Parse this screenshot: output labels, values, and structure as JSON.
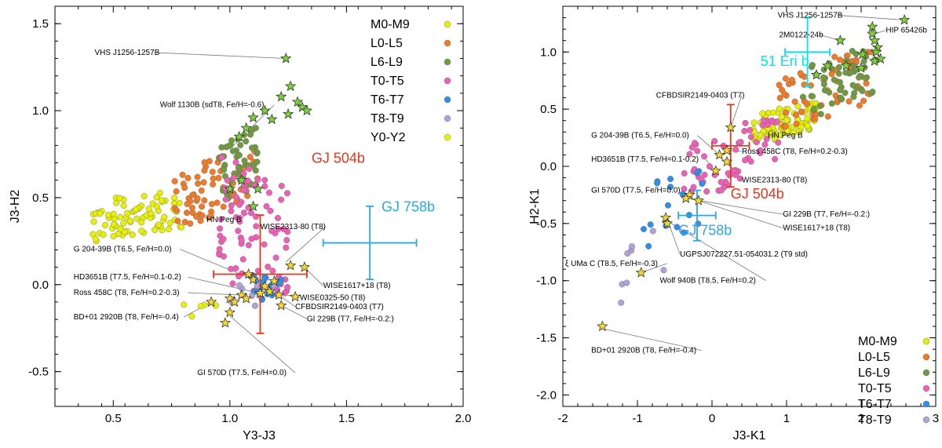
{
  "chart_data": [
    {
      "type": "scatter",
      "id": "left",
      "xlabel": "Y3-J3",
      "ylabel": "J3-H2",
      "xlim": [
        0.25,
        2.0
      ],
      "ylim": [
        -0.7,
        1.6
      ],
      "xticks": [
        0.5,
        1.0,
        1.5,
        2.0
      ],
      "xtick_labels": [
        "0.5",
        "1.0",
        "1.5",
        "2.0"
      ],
      "yticks": [
        -0.5,
        0.0,
        0.5,
        1.0,
        1.5
      ],
      "ytick_labels": [
        "-0.5",
        "0.0",
        "0.5",
        "1.0",
        "1.5"
      ],
      "legend": [
        {
          "label": "M0-M9",
          "color": "#e6f000"
        },
        {
          "label": "L0-L5",
          "color": "#f07a28"
        },
        {
          "label": "L6-L9",
          "color": "#6f9a40"
        },
        {
          "label": "T0-T5",
          "color": "#ee5fb8"
        },
        {
          "label": "T6-T7",
          "color": "#2e8ee8"
        },
        {
          "label": "T8-T9",
          "color": "#b0a2d8"
        },
        {
          "label": "Y0-Y2",
          "color": "#e6f000"
        }
      ],
      "clusters": [
        {
          "group": "M0-M9",
          "color": "#e6f000",
          "seed": 11,
          "n": 80,
          "x": [
            0.4,
            0.8
          ],
          "y": [
            0.25,
            0.55
          ],
          "slope": 0.45
        },
        {
          "group": "L0-L5",
          "color": "#f07a28",
          "seed": 21,
          "n": 70,
          "x": [
            0.75,
            1.12
          ],
          "y": [
            0.35,
            0.78
          ],
          "slope": 0.9
        },
        {
          "group": "L6-L9",
          "color": "#6f9a40",
          "seed": 31,
          "n": 55,
          "x": [
            0.95,
            1.12
          ],
          "y": [
            0.45,
            0.9
          ],
          "slope": 1.5
        },
        {
          "group": "T0-T5",
          "color": "#ee5fb8",
          "seed": 41,
          "n": 85,
          "x": [
            0.95,
            1.25
          ],
          "y": [
            -0.15,
            0.75
          ],
          "slope": -1.2
        },
        {
          "group": "T6-T7",
          "color": "#2e8ee8",
          "seed": 51,
          "n": 16,
          "x": [
            1.05,
            1.22
          ],
          "y": [
            -0.12,
            0.08
          ],
          "slope": 0
        },
        {
          "group": "T8-T9",
          "color": "#b0a2d8",
          "seed": 61,
          "n": 8,
          "x": [
            1.0,
            1.2
          ],
          "y": [
            -0.15,
            0.02
          ],
          "slope": 0
        },
        {
          "group": "Y0-Y2",
          "color": "#e6f000",
          "seed": 71,
          "n": 5,
          "x": [
            0.75,
            0.95
          ],
          "y": [
            -0.25,
            -0.05
          ],
          "slope": 0
        }
      ],
      "stars_green": [
        [
          1.24,
          1.3
        ],
        [
          1.26,
          1.14
        ],
        [
          1.22,
          1.08
        ],
        [
          1.29,
          1.05
        ],
        [
          1.31,
          1.02
        ],
        [
          1.33,
          1.0
        ],
        [
          1.15,
          1.0
        ],
        [
          1.25,
          0.98
        ],
        [
          1.1,
          0.96
        ],
        [
          1.18,
          0.95
        ],
        [
          1.07,
          0.9
        ],
        [
          1.04,
          0.85
        ],
        [
          1.05,
          0.6
        ],
        [
          1.12,
          0.55
        ],
        [
          1.0,
          0.55
        ],
        [
          1.1,
          0.45
        ]
      ],
      "stars_yellow": [
        [
          1.26,
          0.11
        ],
        [
          1.32,
          0.1
        ],
        [
          1.19,
          0.02
        ],
        [
          1.15,
          -0.01
        ],
        [
          1.13,
          -0.05
        ],
        [
          1.1,
          0.03
        ],
        [
          1.08,
          0.06
        ],
        [
          1.17,
          -0.04
        ],
        [
          1.21,
          -0.06
        ],
        [
          1.28,
          -0.07
        ],
        [
          1.22,
          -0.12
        ],
        [
          1.05,
          -0.06
        ],
        [
          1.07,
          -0.08
        ],
        [
          1.0,
          -0.08
        ],
        [
          1.02,
          -0.1
        ],
        [
          0.92,
          -0.1
        ],
        [
          1.0,
          -0.16
        ],
        [
          0.98,
          -0.22
        ]
      ],
      "star_colors": {
        "green": "#7dd23c",
        "yellow": "#f5d733"
      },
      "errorbars": [
        {
          "name": "GJ 504b",
          "label": "GJ 504b",
          "x": 1.13,
          "xerr": 0.2,
          "y": 0.06,
          "yerr": 0.34,
          "color": "#e8351e",
          "label_pos": [
            1.35,
            0.7
          ]
        },
        {
          "name": "GJ 758b",
          "label": "GJ 758b",
          "x": 1.6,
          "xerr": 0.2,
          "y": 0.24,
          "yerr": 0.21,
          "color": "#2ea6e4",
          "label_pos": [
            1.65,
            0.42
          ]
        }
      ],
      "annotations": [
        {
          "text": "VHS J1256-1257B",
          "x": 0.42,
          "y": 1.32,
          "ax": 1.24,
          "ay": 1.3
        },
        {
          "text": "Wolf 1130B (sdT8, Fe/H=-0.6)",
          "x": 0.7,
          "y": 1.02,
          "ax": 1.0,
          "ay": 0.78
        },
        {
          "text": "HN Peg B",
          "x": 0.9,
          "y": 0.36,
          "ax": 1.1,
          "ay": 0.43
        },
        {
          "text": "WISE2313-80 (T8)",
          "x": 1.13,
          "y": 0.32,
          "ax": 1.24,
          "ay": 0.13
        },
        {
          "text": "G 204-39B (T6.5, Fe/H=0.0)",
          "x": 0.33,
          "y": 0.19,
          "ax": 1.1,
          "ay": 0.03
        },
        {
          "text": "WISE1617+18 (T8)",
          "x": 1.4,
          "y": -0.02,
          "ax": 1.32,
          "ay": 0.1
        },
        {
          "text": "HD3651B (T7.5, Fe/H=0.1-0.2)",
          "x": 0.33,
          "y": 0.03,
          "ax": 1.13,
          "ay": -0.05
        },
        {
          "text": "WISE0325-50 (T8)",
          "x": 1.3,
          "y": -0.09,
          "ax": 1.18,
          "ay": -0.04
        },
        {
          "text": "Ross 458C (T8, Fe/H=0.2-0.3)",
          "x": 0.33,
          "y": -0.06,
          "ax": 1.05,
          "ay": -0.06
        },
        {
          "text": "CFBDSIR2149-0403 (T7)",
          "x": 1.28,
          "y": -0.14,
          "ax": 1.21,
          "ay": -0.06
        },
        {
          "text": "GI 229B (T7, Fe/H=-0.2:)",
          "x": 1.33,
          "y": -0.21,
          "ax": 1.22,
          "ay": -0.12
        },
        {
          "text": "BD+01 2920B (T8, Fe/H=-0.4)",
          "x": 0.33,
          "y": -0.2,
          "ax": 0.92,
          "ay": -0.1
        },
        {
          "text": "GI 570D (T7.5, Fe/H=0.0)",
          "x": 0.86,
          "y": -0.52,
          "ax": 1.0,
          "ay": -0.18
        }
      ]
    },
    {
      "type": "scatter",
      "id": "right",
      "xlabel": "J3-K1",
      "ylabel": "H2-K1",
      "xlim": [
        -2.0,
        3.0
      ],
      "ylim": [
        -2.1,
        1.4
      ],
      "xticks": [
        -2,
        -1,
        0,
        1,
        2,
        3
      ],
      "xtick_labels": [
        "-2",
        "-1",
        "0",
        "1",
        "2",
        "3"
      ],
      "yticks": [
        -2.0,
        -1.5,
        -1.0,
        -0.5,
        0.0,
        0.5,
        1.0
      ],
      "ytick_labels": [
        "-2.0",
        "-1.5",
        "-1.0",
        "-0.5",
        "0.0",
        "0.5",
        "1.0"
      ],
      "legend": [
        {
          "label": "M0-M9",
          "color": "#e6f000"
        },
        {
          "label": "L0-L5",
          "color": "#f07a28"
        },
        {
          "label": "L6-L9",
          "color": "#6f9a40"
        },
        {
          "label": "T0-T5",
          "color": "#ee5fb8"
        },
        {
          "label": "T6-T7",
          "color": "#2e8ee8"
        },
        {
          "label": "T8-T9",
          "color": "#b0a2d8"
        }
      ],
      "clusters": [
        {
          "group": "M0-M9",
          "color": "#e6f000",
          "seed": 12,
          "n": 90,
          "x": [
            0.55,
            1.4
          ],
          "y": [
            0.22,
            0.55
          ],
          "slope": 0.35
        },
        {
          "group": "L0-L5",
          "color": "#f07a28",
          "seed": 22,
          "n": 60,
          "x": [
            0.9,
            2.15
          ],
          "y": [
            0.35,
            1.0
          ],
          "slope": 0.5
        },
        {
          "group": "L6-L9",
          "color": "#6f9a40",
          "seed": 32,
          "n": 55,
          "x": [
            1.2,
            2.2
          ],
          "y": [
            0.45,
            1.05
          ],
          "slope": 0.55
        },
        {
          "group": "T0-T5",
          "color": "#ee5fb8",
          "seed": 42,
          "n": 60,
          "x": [
            -0.4,
            0.9
          ],
          "y": [
            -0.25,
            0.4
          ],
          "slope": 0.5
        },
        {
          "group": "T6-T7",
          "color": "#2e8ee8",
          "seed": 52,
          "n": 18,
          "x": [
            -0.95,
            -0.1
          ],
          "y": [
            -0.8,
            0.05
          ],
          "slope": 0.9
        },
        {
          "group": "T8-T9",
          "color": "#b0a2d8",
          "seed": 62,
          "n": 8,
          "x": [
            -1.25,
            -0.6
          ],
          "y": [
            -1.2,
            -0.55
          ],
          "slope": 0.9
        }
      ],
      "stars_green": [
        [
          2.58,
          1.28
        ],
        [
          2.15,
          1.22
        ],
        [
          2.15,
          1.16
        ],
        [
          2.18,
          1.1
        ],
        [
          2.22,
          1.04
        ],
        [
          2.2,
          1.0
        ],
        [
          2.02,
          0.98
        ],
        [
          2.26,
          0.94
        ],
        [
          2.18,
          0.92
        ],
        [
          1.72,
          1.1
        ],
        [
          1.55,
          0.88
        ],
        [
          1.4,
          0.8
        ],
        [
          1.8,
          0.88
        ],
        [
          2.0,
          0.86
        ]
      ],
      "stars_yellow": [
        [
          0.25,
          0.34
        ],
        [
          0.2,
          0.14
        ],
        [
          0.1,
          0.1
        ],
        [
          0.2,
          0.04
        ],
        [
          0.05,
          -0.04
        ],
        [
          -0.3,
          -0.25
        ],
        [
          -0.35,
          -0.28
        ],
        [
          -0.18,
          -0.3
        ],
        [
          -0.62,
          -0.45
        ],
        [
          -0.6,
          -0.5
        ],
        [
          -0.95,
          -0.93
        ],
        [
          -1.47,
          -1.4
        ]
      ],
      "star_colors": {
        "green": "#7dd23c",
        "yellow": "#f5d733"
      },
      "errorbars": [
        {
          "name": "GJ 504b",
          "label": "GJ 504b",
          "x": 0.25,
          "xerr": 0.25,
          "y": 0.18,
          "yerr": 0.36,
          "color": "#e8351e",
          "label_pos": [
            0.25,
            -0.28
          ]
        },
        {
          "name": "GJ 758b",
          "label": "GJ 758b",
          "x": -0.2,
          "xerr": 0.25,
          "y": -0.43,
          "yerr": 0.22,
          "color": "#2ea6e4",
          "label_pos": [
            -0.45,
            -0.6
          ]
        },
        {
          "name": "51 Eri b",
          "label": "51 Eri b",
          "x": 1.28,
          "xerr": 0.3,
          "y": 1.0,
          "yerr": 0.3,
          "color": "#00e6ee",
          "label_pos": [
            0.65,
            0.88
          ]
        }
      ],
      "annotations": [
        {
          "text": "VHS J1256-1257B",
          "x": 0.88,
          "y": 1.3,
          "ax": 2.58,
          "ay": 1.28
        },
        {
          "text": "HIP 65426b",
          "x": 2.33,
          "y": 1.17,
          "ax": 2.15,
          "ay": 1.15
        },
        {
          "text": "2M0122-24b",
          "x": 0.9,
          "y": 1.13,
          "ax": 1.72,
          "ay": 1.1
        },
        {
          "text": "CFBDSIR2149-0403 (T7)",
          "x": -0.75,
          "y": 0.6,
          "ax": 0.25,
          "ay": 0.34
        },
        {
          "text": "HN Peg B",
          "x": 0.75,
          "y": 0.25,
          "ax": 0.6,
          "ay": 0.3
        },
        {
          "text": "G 204-39B (T6.5, Fe/H=0.0)",
          "x": -1.62,
          "y": 0.25,
          "ax": 0.1,
          "ay": 0.1
        },
        {
          "text": "Ross 458C (T8,  Fe/H=0.2-0.3)",
          "x": 0.4,
          "y": 0.11,
          "ax": 0.2,
          "ay": 0.14
        },
        {
          "text": "HD3651B (T7.5, Fe/H=0.1-0.2)",
          "x": -1.62,
          "y": 0.04,
          "ax": 0.05,
          "ay": -0.04
        },
        {
          "text": "WISE2313-80 (T8)",
          "x": 0.4,
          "y": -0.14,
          "ax": 0.2,
          "ay": 0.04
        },
        {
          "text": "GI 570D (T7.5, Fe/H=0.0)",
          "x": -1.62,
          "y": -0.23,
          "ax": -0.3,
          "ay": -0.25
        },
        {
          "text": "GI 229B (T7, Fe/H=-0.2:)",
          "x": 0.95,
          "y": -0.44,
          "ax": -0.35,
          "ay": -0.28
        },
        {
          "text": "WISE1617+18 (T8)",
          "x": 0.95,
          "y": -0.56,
          "ax": -0.18,
          "ay": -0.3
        },
        {
          "text": "UGPSJ072227.51-054031.2 (T9 std)",
          "x": -0.43,
          "y": -0.79,
          "ax": -0.58,
          "ay": -0.5,
          "color": "#4a5ab0"
        },
        {
          "text": "ξ UMa C (T8.5, Fe/H=-0.3)",
          "x": -1.97,
          "y": -0.87,
          "ax": -0.95,
          "ay": -0.93
        },
        {
          "text": "Wolf 940B (T8.5, Fe/H=0.2)",
          "x": -0.7,
          "y": -1.02,
          "ax": -0.62,
          "ay": -0.47
        },
        {
          "text": "BD+01 2920B (T8, Fe/H=-0.4)",
          "x": -1.62,
          "y": -1.63,
          "ax": -1.47,
          "ay": -1.42
        }
      ]
    }
  ]
}
